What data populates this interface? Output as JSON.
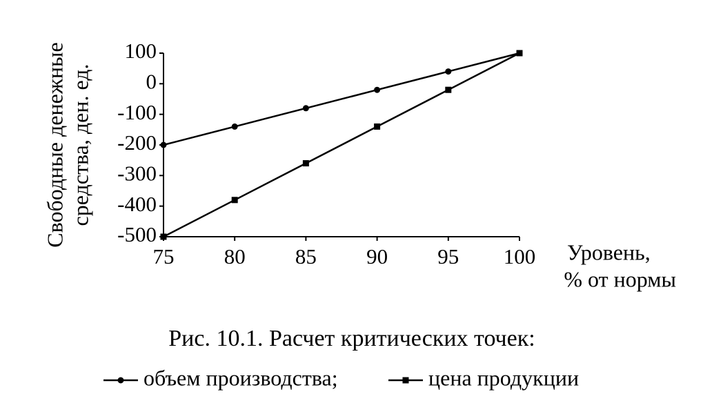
{
  "chart_data": {
    "type": "line",
    "title": "Рис. 10.1. Расчет критических точек:",
    "ylabel": [
      "Свободные денежные",
      "средства, ден. ед."
    ],
    "xlabel": [
      "Уровень,",
      "% от нормы"
    ],
    "x": [
      75,
      80,
      85,
      90,
      95,
      100
    ],
    "series": [
      {
        "name": "объем производства;",
        "color": "#000000",
        "marker": "circle",
        "values": [
          -200,
          -140,
          -80,
          -20,
          40,
          100
        ]
      },
      {
        "name": "цена продукции",
        "color": "#000000",
        "marker": "square",
        "values": [
          -500,
          -380,
          -260,
          -140,
          -20,
          100
        ]
      }
    ],
    "xlim": [
      75,
      100
    ],
    "xticks": [
      75,
      80,
      85,
      90,
      95,
      100
    ],
    "ylim": [
      -500,
      100
    ],
    "yticks": [
      100,
      0,
      -100,
      -200,
      -300,
      -400,
      -500
    ],
    "grid": false
  }
}
